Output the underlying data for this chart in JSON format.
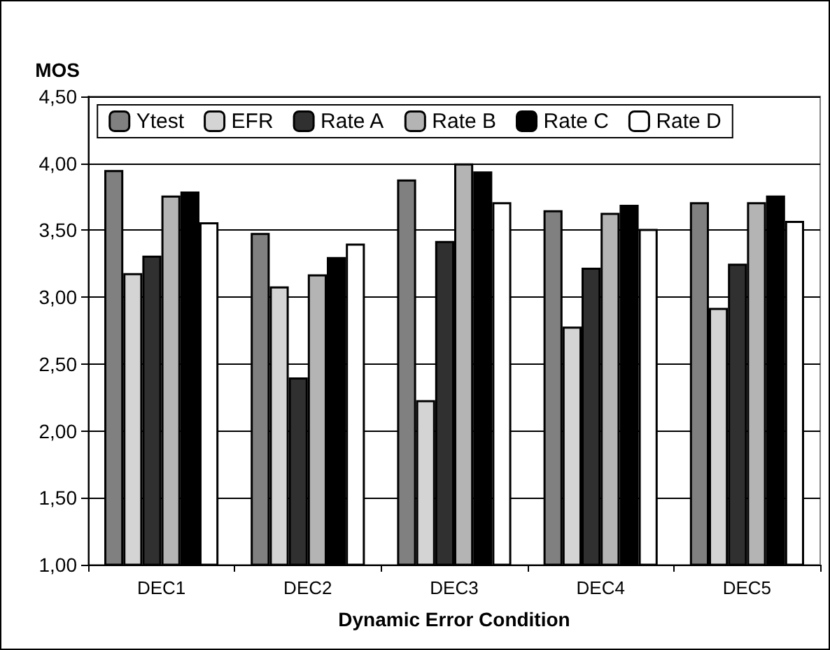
{
  "chart_data": {
    "type": "bar",
    "ylabel": "MOS",
    "xlabel": "Dynamic Error Condition",
    "categories": [
      "DEC1",
      "DEC2",
      "DEC3",
      "DEC4",
      "DEC5"
    ],
    "series": [
      {
        "name": "Ytest",
        "color": "#808080",
        "values": [
          3.95,
          3.48,
          3.88,
          3.65,
          3.71
        ]
      },
      {
        "name": "EFR",
        "color": "#d4d4d4",
        "values": [
          3.18,
          3.08,
          2.23,
          2.78,
          2.92
        ]
      },
      {
        "name": "Rate A",
        "color": "#303030",
        "values": [
          3.31,
          2.4,
          3.42,
          3.22,
          3.25
        ]
      },
      {
        "name": "Rate B",
        "color": "#b4b4b4",
        "values": [
          3.76,
          3.17,
          4.0,
          3.63,
          3.71
        ]
      },
      {
        "name": "Rate C",
        "color": "#000000",
        "values": [
          3.79,
          3.3,
          3.94,
          3.69,
          3.76
        ]
      },
      {
        "name": "Rate D",
        "color": "#ffffff",
        "values": [
          3.56,
          3.4,
          3.71,
          3.51,
          3.57
        ]
      }
    ],
    "ylim": [
      1,
      4.5
    ],
    "yticks": [
      {
        "value": 1,
        "label": "1,00"
      },
      {
        "value": 1.5,
        "label": "1,50"
      },
      {
        "value": 2,
        "label": "2,00"
      },
      {
        "value": 2.5,
        "label": "2,50"
      },
      {
        "value": 3,
        "label": "3,00"
      },
      {
        "value": 3.5,
        "label": "3,50"
      },
      {
        "value": 4,
        "label": "4,00"
      },
      {
        "value": 4.5,
        "label": "4,50"
      }
    ],
    "grid": "y",
    "legend": "top"
  }
}
